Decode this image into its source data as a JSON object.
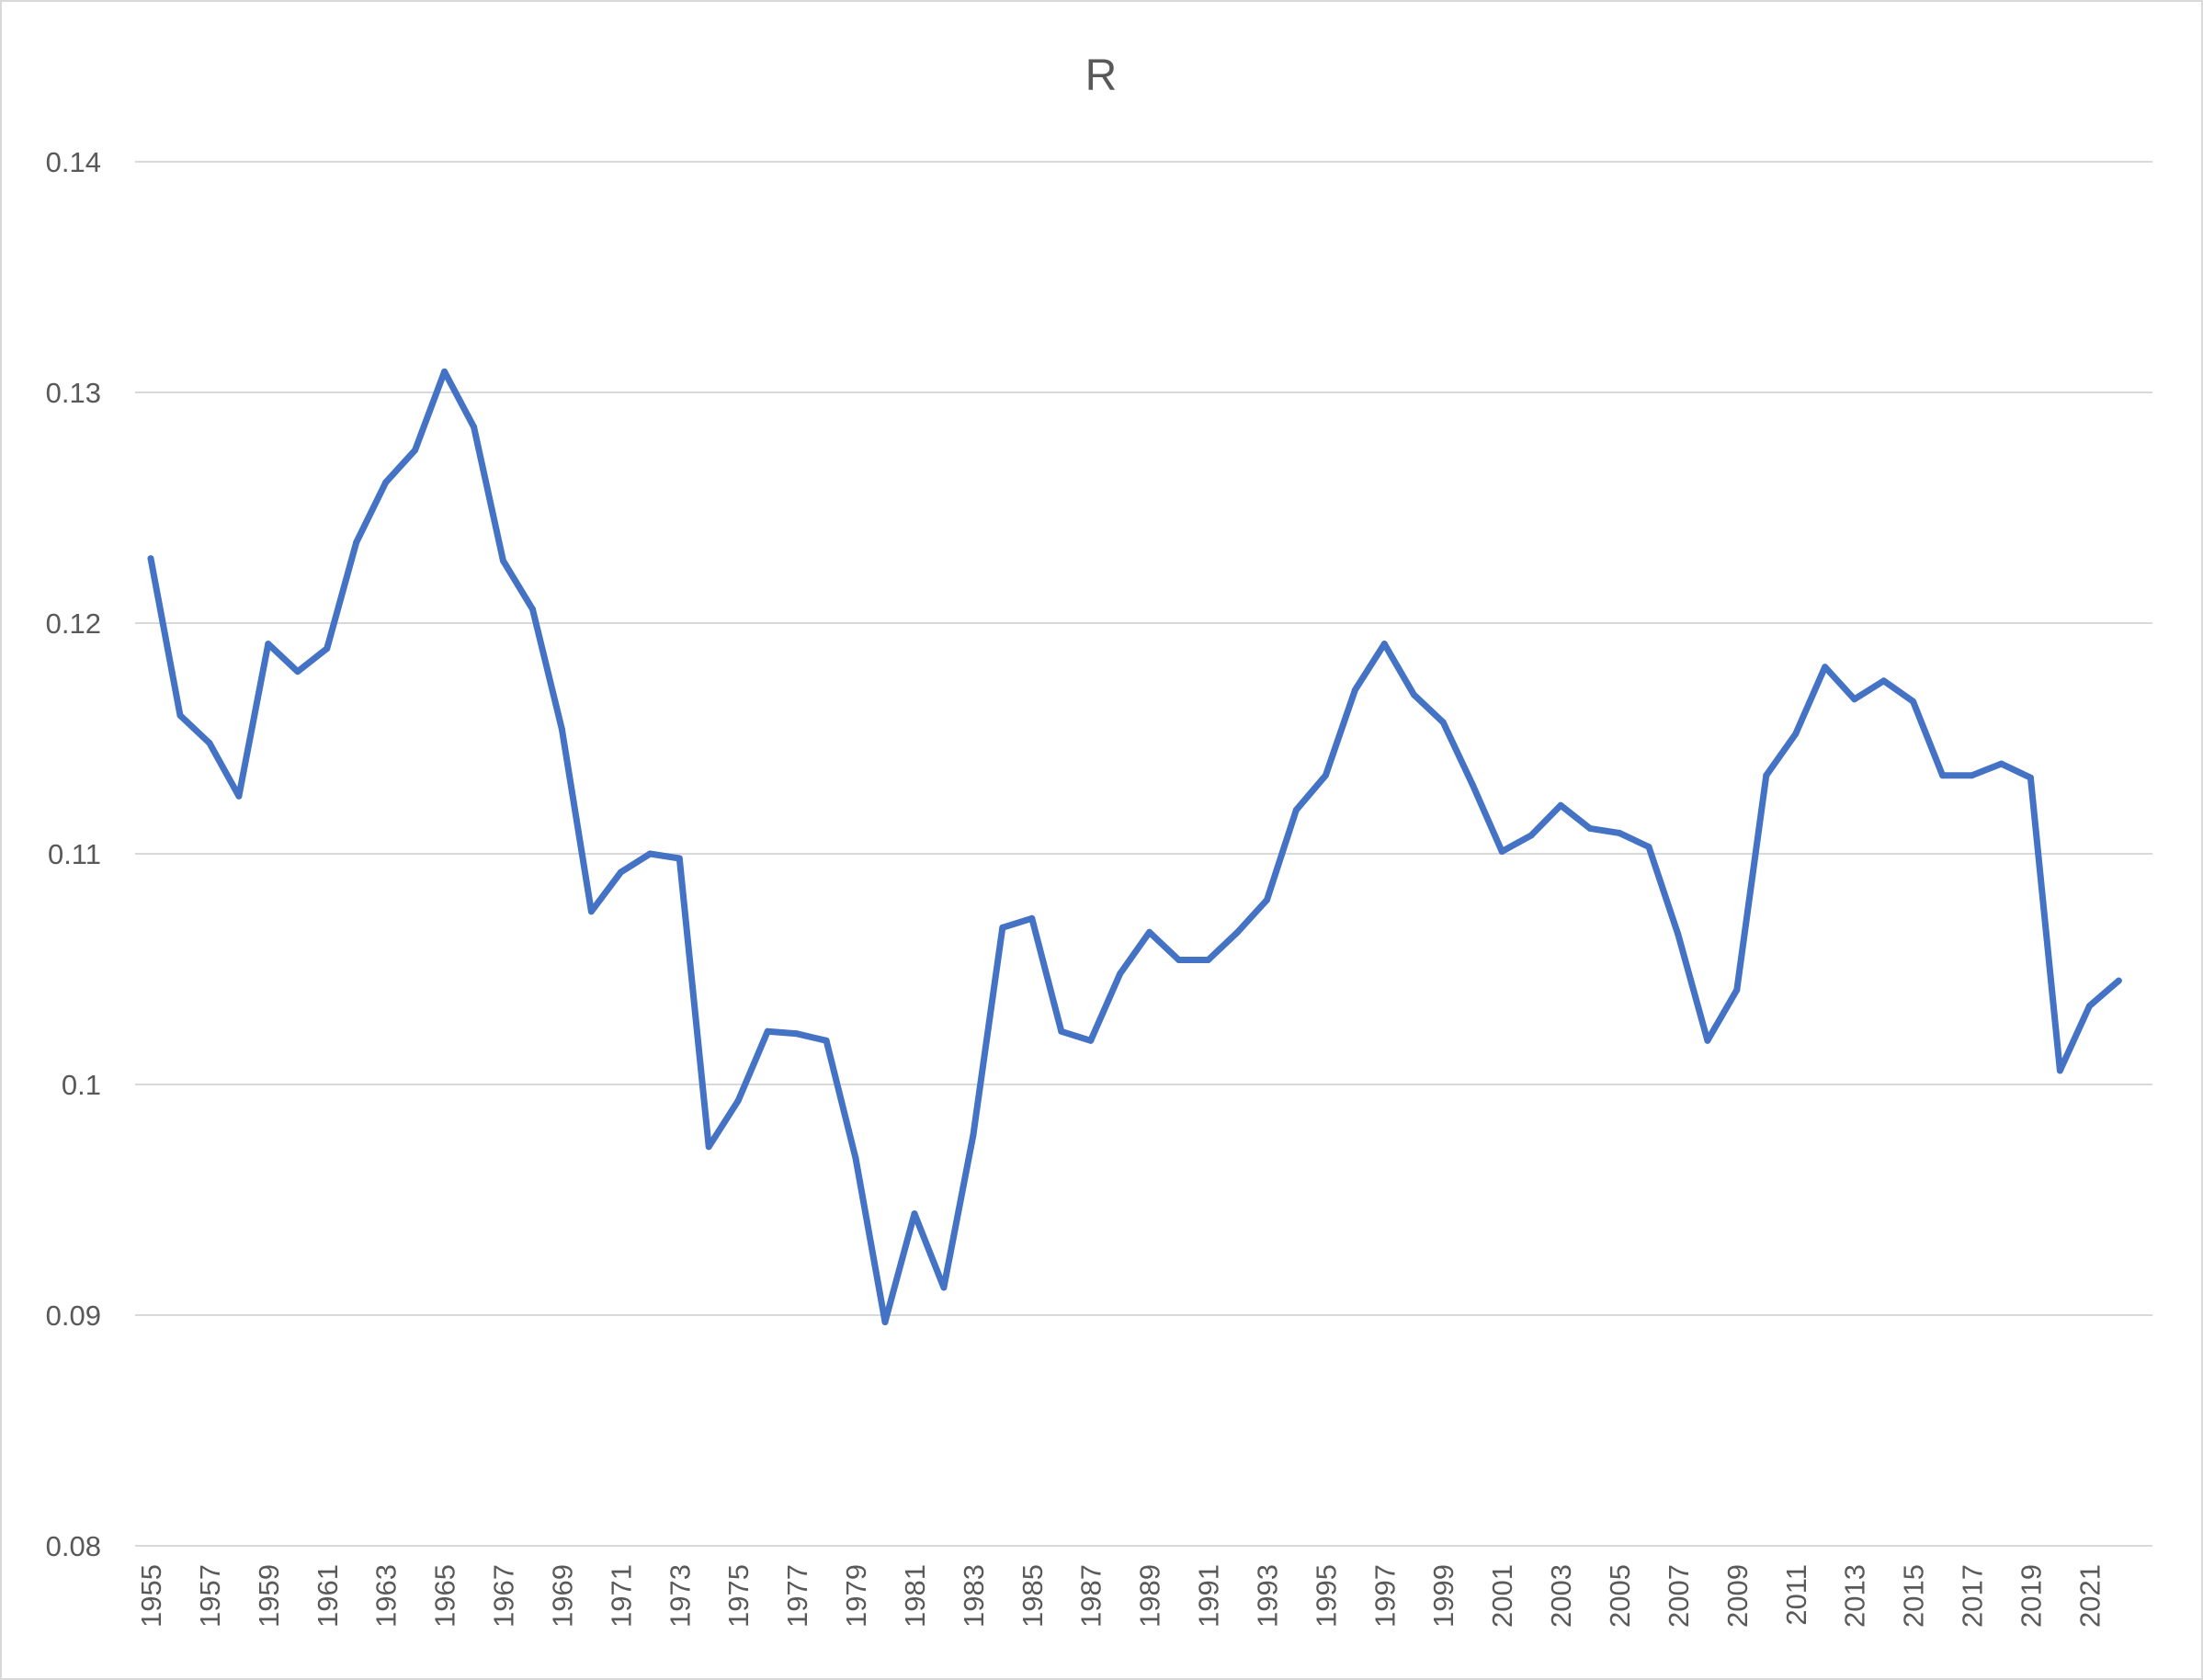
{
  "chart_data": {
    "type": "line",
    "title": "R",
    "xlabel": "",
    "ylabel": "",
    "ylim": [
      0.08,
      0.14
    ],
    "y_ticks": [
      "0.08",
      "0.09",
      "0.1",
      "0.11",
      "0.12",
      "0.13",
      "0.14"
    ],
    "x_tick_labels": [
      "1955",
      "1957",
      "1959",
      "1961",
      "1963",
      "1965",
      "1967",
      "1969",
      "1971",
      "1973",
      "1975",
      "1977",
      "1979",
      "1981",
      "1983",
      "1985",
      "1987",
      "1989",
      "1991",
      "1993",
      "1995",
      "1997",
      "1999",
      "2001",
      "2003",
      "2005",
      "2007",
      "2009",
      "2011",
      "2013",
      "2015",
      "2017",
      "2019",
      "2021"
    ],
    "grid": true,
    "legend": "none",
    "line_color": "#4472C4",
    "series": [
      {
        "x": [
          1955,
          1956,
          1957,
          1958,
          1959,
          1960,
          1961,
          1962,
          1963,
          1964,
          1965,
          1966,
          1967,
          1968,
          1969,
          1970,
          1971,
          1972,
          1973,
          1974,
          1975,
          1976,
          1977,
          1978,
          1979,
          1980,
          1981,
          1982,
          1983,
          1984,
          1985,
          1986,
          1987,
          1988,
          1989,
          1990,
          1991,
          1992,
          1993,
          1994,
          1995,
          1996,
          1997,
          1998,
          1999,
          2000,
          2001,
          2002,
          2003,
          2004,
          2005,
          2006,
          2007,
          2008,
          2009,
          2010,
          2011,
          2012,
          2013,
          2014,
          2015,
          2016,
          2017,
          2018,
          2019,
          2020,
          2021,
          2022
        ],
        "values": [
          0.1228,
          0.116,
          0.1148,
          0.1125,
          0.1191,
          0.1179,
          0.1189,
          0.1235,
          0.1261,
          0.1275,
          0.1309,
          0.1285,
          0.1227,
          0.1206,
          0.1154,
          0.1075,
          0.1092,
          0.11,
          0.1098,
          0.0973,
          0.0993,
          0.1023,
          0.1022,
          0.1019,
          0.0968,
          0.0897,
          0.0944,
          0.0912,
          0.0978,
          0.1068,
          0.1072,
          0.1023,
          0.1019,
          0.1048,
          0.1066,
          0.1054,
          0.1054,
          0.1066,
          0.108,
          0.1119,
          0.1134,
          0.1171,
          0.1191,
          0.1169,
          0.1157,
          0.113,
          0.1101,
          0.1108,
          0.1121,
          0.1111,
          0.1109,
          0.1103,
          0.1065,
          0.1019,
          0.1041,
          0.1134,
          0.1152,
          0.1181,
          0.1167,
          0.1175,
          0.1166,
          0.1134,
          0.1134,
          0.1139,
          0.1133,
          0.1006,
          0.1034,
          0.1045
        ]
      }
    ]
  }
}
